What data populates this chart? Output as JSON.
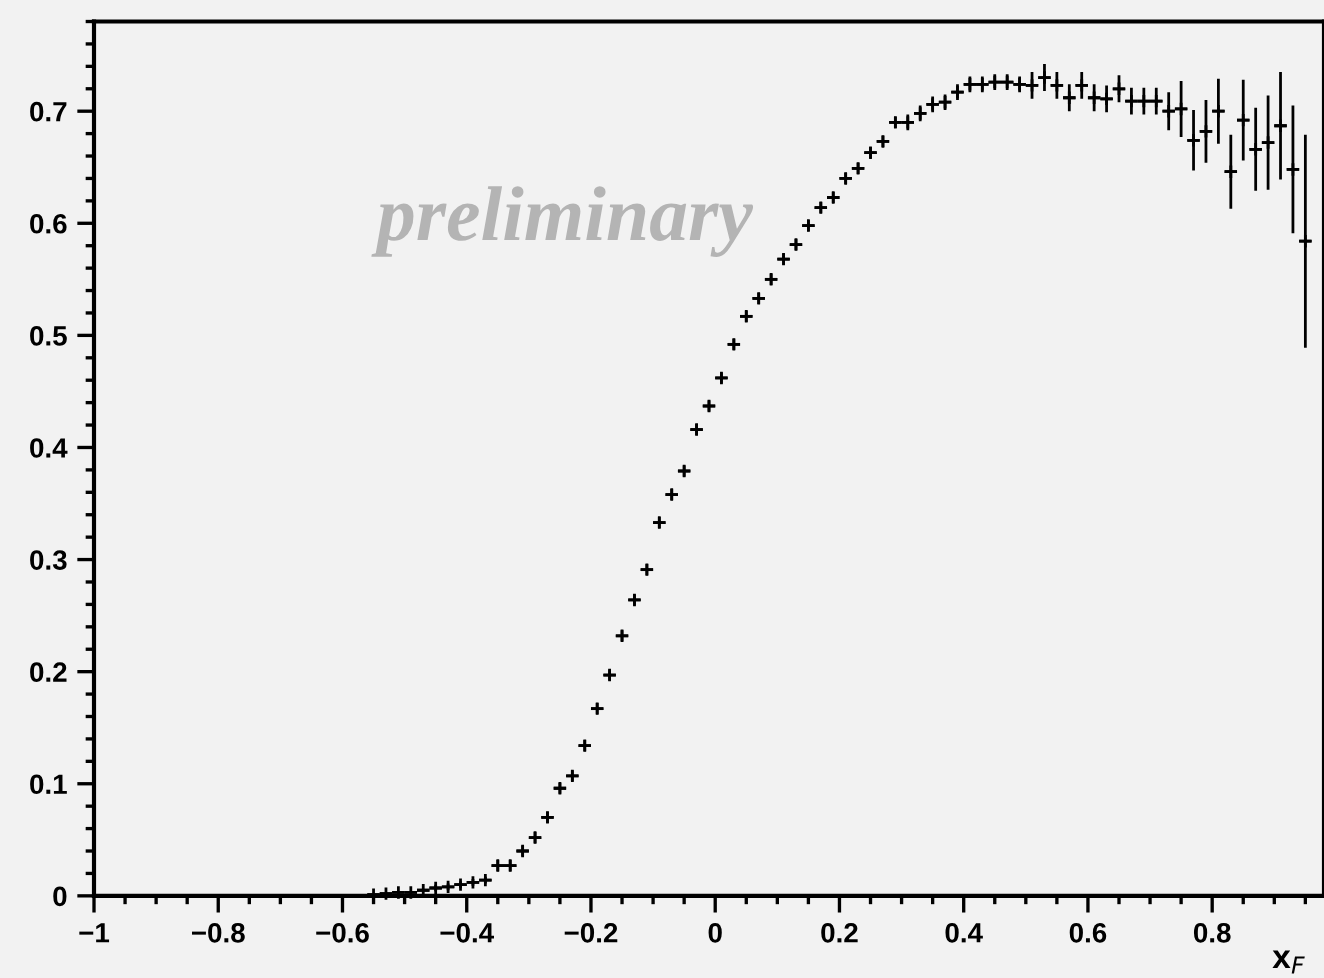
{
  "chart_data": {
    "type": "scatter",
    "xlabel": "x$_{F}$",
    "marker": "cross",
    "grid": false,
    "color": "#000000",
    "annotations": [
      "preliminary"
    ],
    "xlim": [
      -1,
      0.98
    ],
    "ylim": [
      0,
      0.78
    ],
    "xticks": [
      {
        "value": -1,
        "label": "−1"
      },
      {
        "value": -0.8,
        "label": "−0.8"
      },
      {
        "value": -0.6,
        "label": "−0.6"
      },
      {
        "value": -0.4,
        "label": "−0.4"
      },
      {
        "value": -0.2,
        "label": "−0.2"
      },
      0,
      0.2,
      0.4,
      0.6,
      0.8
    ],
    "yticks": [
      0,
      0.1,
      0.2,
      0.3,
      0.4,
      0.5,
      0.6,
      0.7
    ],
    "x": [
      -0.55,
      -0.53,
      -0.51,
      -0.49,
      -0.47,
      -0.45,
      -0.43,
      -0.41,
      -0.39,
      -0.37,
      -0.35,
      -0.33,
      -0.31,
      -0.29,
      -0.27,
      -0.25,
      -0.23,
      -0.21,
      -0.19,
      -0.17,
      -0.15,
      -0.13,
      -0.11,
      -0.09,
      -0.07,
      -0.05,
      -0.03,
      -0.01,
      0.01,
      0.03,
      0.05,
      0.07,
      0.09,
      0.11,
      0.13,
      0.15,
      0.17,
      0.19,
      0.21,
      0.23,
      0.25,
      0.27,
      0.29,
      0.31,
      0.33,
      0.35,
      0.37,
      0.39,
      0.41,
      0.43,
      0.45,
      0.47,
      0.49,
      0.51,
      0.53,
      0.55,
      0.57,
      0.59,
      0.61,
      0.63,
      0.65,
      0.67,
      0.69,
      0.71,
      0.73,
      0.75,
      0.77,
      0.79,
      0.81,
      0.83,
      0.85,
      0.87,
      0.89,
      0.91,
      0.93,
      0.95
    ],
    "values": [
      0.001,
      0.002,
      0.003,
      0.003,
      0.005,
      0.007,
      0.008,
      0.01,
      0.012,
      0.014,
      0.027,
      0.027,
      0.04,
      0.052,
      0.07,
      0.096,
      0.107,
      0.134,
      0.167,
      0.197,
      0.232,
      0.264,
      0.291,
      0.333,
      0.358,
      0.379,
      0.416,
      0.437,
      0.462,
      0.492,
      0.517,
      0.533,
      0.55,
      0.568,
      0.581,
      0.598,
      0.614,
      0.623,
      0.64,
      0.649,
      0.663,
      0.673,
      0.69,
      0.69,
      0.698,
      0.706,
      0.708,
      0.717,
      0.724,
      0.724,
      0.726,
      0.726,
      0.724,
      0.723,
      0.73,
      0.723,
      0.712,
      0.723,
      0.712,
      0.711,
      0.72,
      0.709,
      0.709,
      0.709,
      0.7,
      0.702,
      0.674,
      0.682,
      0.7,
      0.646,
      0.692,
      0.666,
      0.672,
      0.687,
      0.648,
      0.584
    ],
    "errors": [
      null,
      null,
      null,
      null,
      null,
      0.003,
      0.003,
      0.003,
      0.003,
      0.003,
      0.005,
      0.005,
      0.005,
      0.005,
      0.005,
      0.005,
      0.005,
      0.005,
      0.005,
      0.005,
      0.005,
      0.005,
      0.005,
      0.005,
      0.005,
      0.005,
      0.005,
      0.005,
      0.005,
      0.005,
      0.005,
      0.005,
      0.005,
      0.005,
      0.005,
      0.005,
      0.005,
      0.005,
      0.005,
      0.005,
      0.005,
      0.005,
      0.005,
      0.007,
      0.007,
      0.007,
      0.007,
      0.007,
      0.007,
      0.007,
      0.007,
      0.007,
      0.007,
      0.012,
      0.012,
      0.012,
      0.012,
      0.012,
      0.012,
      0.012,
      0.012,
      0.012,
      0.012,
      0.012,
      0.017,
      0.025,
      0.027,
      0.028,
      0.029,
      0.033,
      0.036,
      0.037,
      0.042,
      0.048,
      0.057,
      0.095
    ],
    "xerrors": [
      0.01,
      0.01,
      0.01,
      0.01,
      0.01,
      0.01,
      0.01,
      0.01,
      0.01,
      0.01,
      0.01,
      0.01,
      0.01,
      0.01,
      0.01,
      0.01,
      0.01,
      0.01,
      0.01,
      0.01,
      0.01,
      0.01,
      0.01,
      0.01,
      0.01,
      0.01,
      0.01,
      0.01,
      0.01,
      0.01,
      0.01,
      0.01,
      0.01,
      0.01,
      0.01,
      0.01,
      0.01,
      0.01,
      0.01,
      0.01,
      0.01,
      0.01,
      0.01,
      0.01,
      0.01,
      0.01,
      0.01,
      0.01,
      0.01,
      0.01,
      0.01,
      0.01,
      0.01,
      0.01,
      0.01,
      0.01,
      0.01,
      0.01,
      0.01,
      0.01,
      0.01,
      0.01,
      0.01,
      0.01,
      0.01,
      0.01,
      0.01,
      0.01,
      0.01,
      0.01,
      0.01,
      0.01,
      0.01,
      0.01,
      0.01,
      0.01
    ]
  }
}
